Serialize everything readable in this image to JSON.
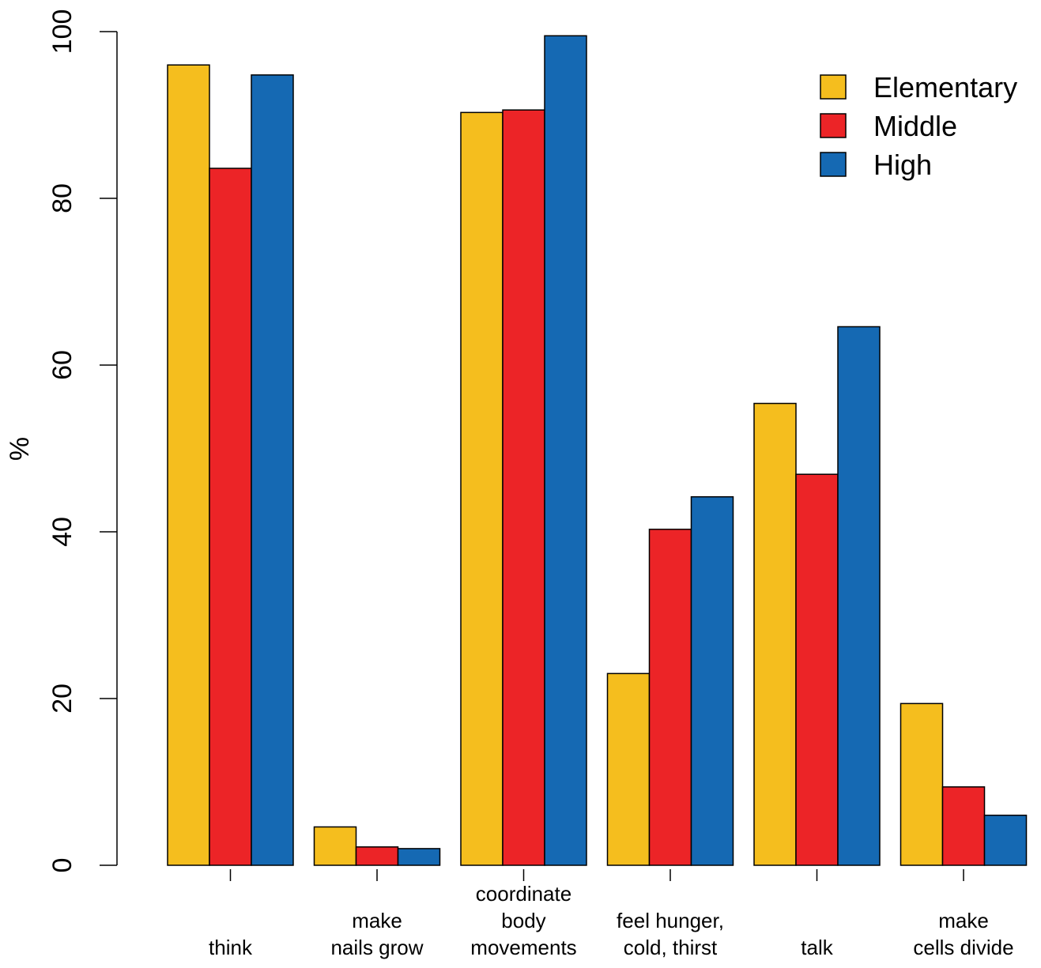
{
  "chart_data": {
    "type": "bar",
    "title": "",
    "xlabel": "",
    "ylabel": "%",
    "ylim": [
      0,
      100
    ],
    "yticks": [
      0,
      20,
      40,
      60,
      80,
      100
    ],
    "grid": false,
    "legend_position": "top-right",
    "categories": [
      [
        "think"
      ],
      [
        "make",
        "nails grow"
      ],
      [
        "coordinate",
        "body",
        "movements"
      ],
      [
        "feel hunger,",
        "cold, thirst"
      ],
      [
        "talk"
      ],
      [
        "make",
        "cells divide"
      ]
    ],
    "series": [
      {
        "name": "Elementary",
        "color": "#F5BE1E",
        "values": [
          96,
          4.6,
          90.3,
          23,
          55.4,
          19.4
        ]
      },
      {
        "name": "Middle",
        "color": "#EC2427",
        "values": [
          83.6,
          2.2,
          90.6,
          40.3,
          46.9,
          9.4
        ]
      },
      {
        "name": "High",
        "color": "#1569B3",
        "values": [
          94.8,
          2,
          99.5,
          44.2,
          64.6,
          6
        ]
      }
    ]
  }
}
